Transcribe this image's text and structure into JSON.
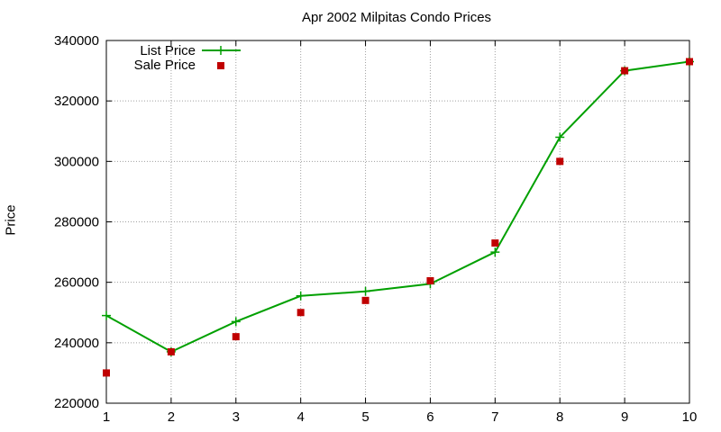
{
  "chart_data": {
    "type": "line",
    "title": "Apr 2002 Milpitas Condo Prices",
    "xlabel": "",
    "ylabel": "Price",
    "x": [
      1,
      2,
      3,
      4,
      5,
      6,
      7,
      8,
      9,
      10
    ],
    "xlim": [
      1,
      10
    ],
    "ylim": [
      220000,
      340000
    ],
    "xticks": [
      "1",
      "2",
      "3",
      "4",
      "5",
      "6",
      "7",
      "8",
      "9",
      "10"
    ],
    "yticks": [
      "220000",
      "240000",
      "260000",
      "280000",
      "300000",
      "320000",
      "340000"
    ],
    "grid": true,
    "legend_position": "top-left",
    "series": [
      {
        "name": "List Price",
        "style": "line+plus-markers",
        "color": "#00a000",
        "values": [
          249000,
          237000,
          247000,
          255500,
          257000,
          259500,
          270000,
          308000,
          330000,
          333000
        ]
      },
      {
        "name": "Sale Price",
        "style": "square-markers",
        "color": "#c00000",
        "values": [
          230000,
          237000,
          242000,
          250000,
          254000,
          260500,
          273000,
          300000,
          330000,
          333000
        ]
      }
    ]
  }
}
